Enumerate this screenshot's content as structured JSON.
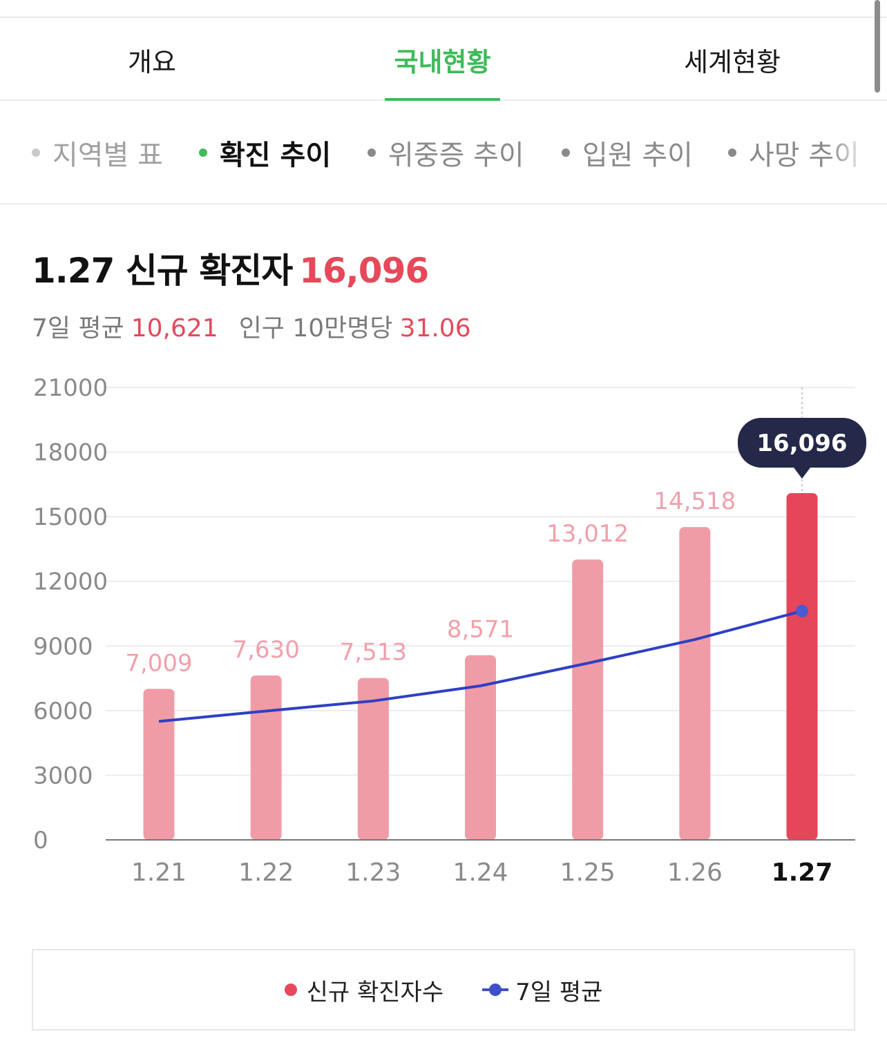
{
  "tabs": [
    {
      "label": "개요",
      "active": false
    },
    {
      "label": "국내현황",
      "active": true
    },
    {
      "label": "세계현황",
      "active": false
    }
  ],
  "subtabs": [
    {
      "label": "지역별 표",
      "active": false
    },
    {
      "label": "확진 추이",
      "active": true
    },
    {
      "label": "위중증 추이",
      "active": false
    },
    {
      "label": "입원 추이",
      "active": false
    },
    {
      "label": "사망 추이",
      "active": false
    }
  ],
  "summary": {
    "date": "1.27",
    "label": "신규 확진자",
    "value": "16,096",
    "avg_label": "7일 평균",
    "avg_value": "10,621",
    "per_label": "인구 10만명당",
    "per_value": "31.06"
  },
  "colors": {
    "accent_green": "#3fbb59",
    "bar_light": "#f09ca7",
    "bar_highlight": "#e5465a",
    "bar_label": "#f0a0ab",
    "line": "#2f3fc4",
    "tooltip_bg": "#24294a"
  },
  "chart_data": {
    "type": "bar",
    "categories": [
      "1.21",
      "1.22",
      "1.23",
      "1.24",
      "1.25",
      "1.26",
      "1.27"
    ],
    "values": [
      7009,
      7630,
      7513,
      8571,
      13012,
      14518,
      16096
    ],
    "value_labels": [
      "7,009",
      "7,630",
      "7,513",
      "8,571",
      "13,012",
      "14,518",
      "16,096"
    ],
    "series": [
      {
        "name": "신규 확진자수",
        "type": "bar",
        "values": [
          7009,
          7630,
          7513,
          8571,
          13012,
          14518,
          16096
        ]
      },
      {
        "name": "7일 평균",
        "type": "line",
        "values": [
          5500,
          5980,
          6450,
          7150,
          8200,
          9300,
          10621
        ]
      }
    ],
    "yticks": [
      0,
      3000,
      6000,
      9000,
      12000,
      15000,
      18000,
      21000
    ],
    "ylim": [
      0,
      21000
    ],
    "highlight_index": 6,
    "tooltip": "16,096",
    "grid": true,
    "legend": "bottom"
  }
}
